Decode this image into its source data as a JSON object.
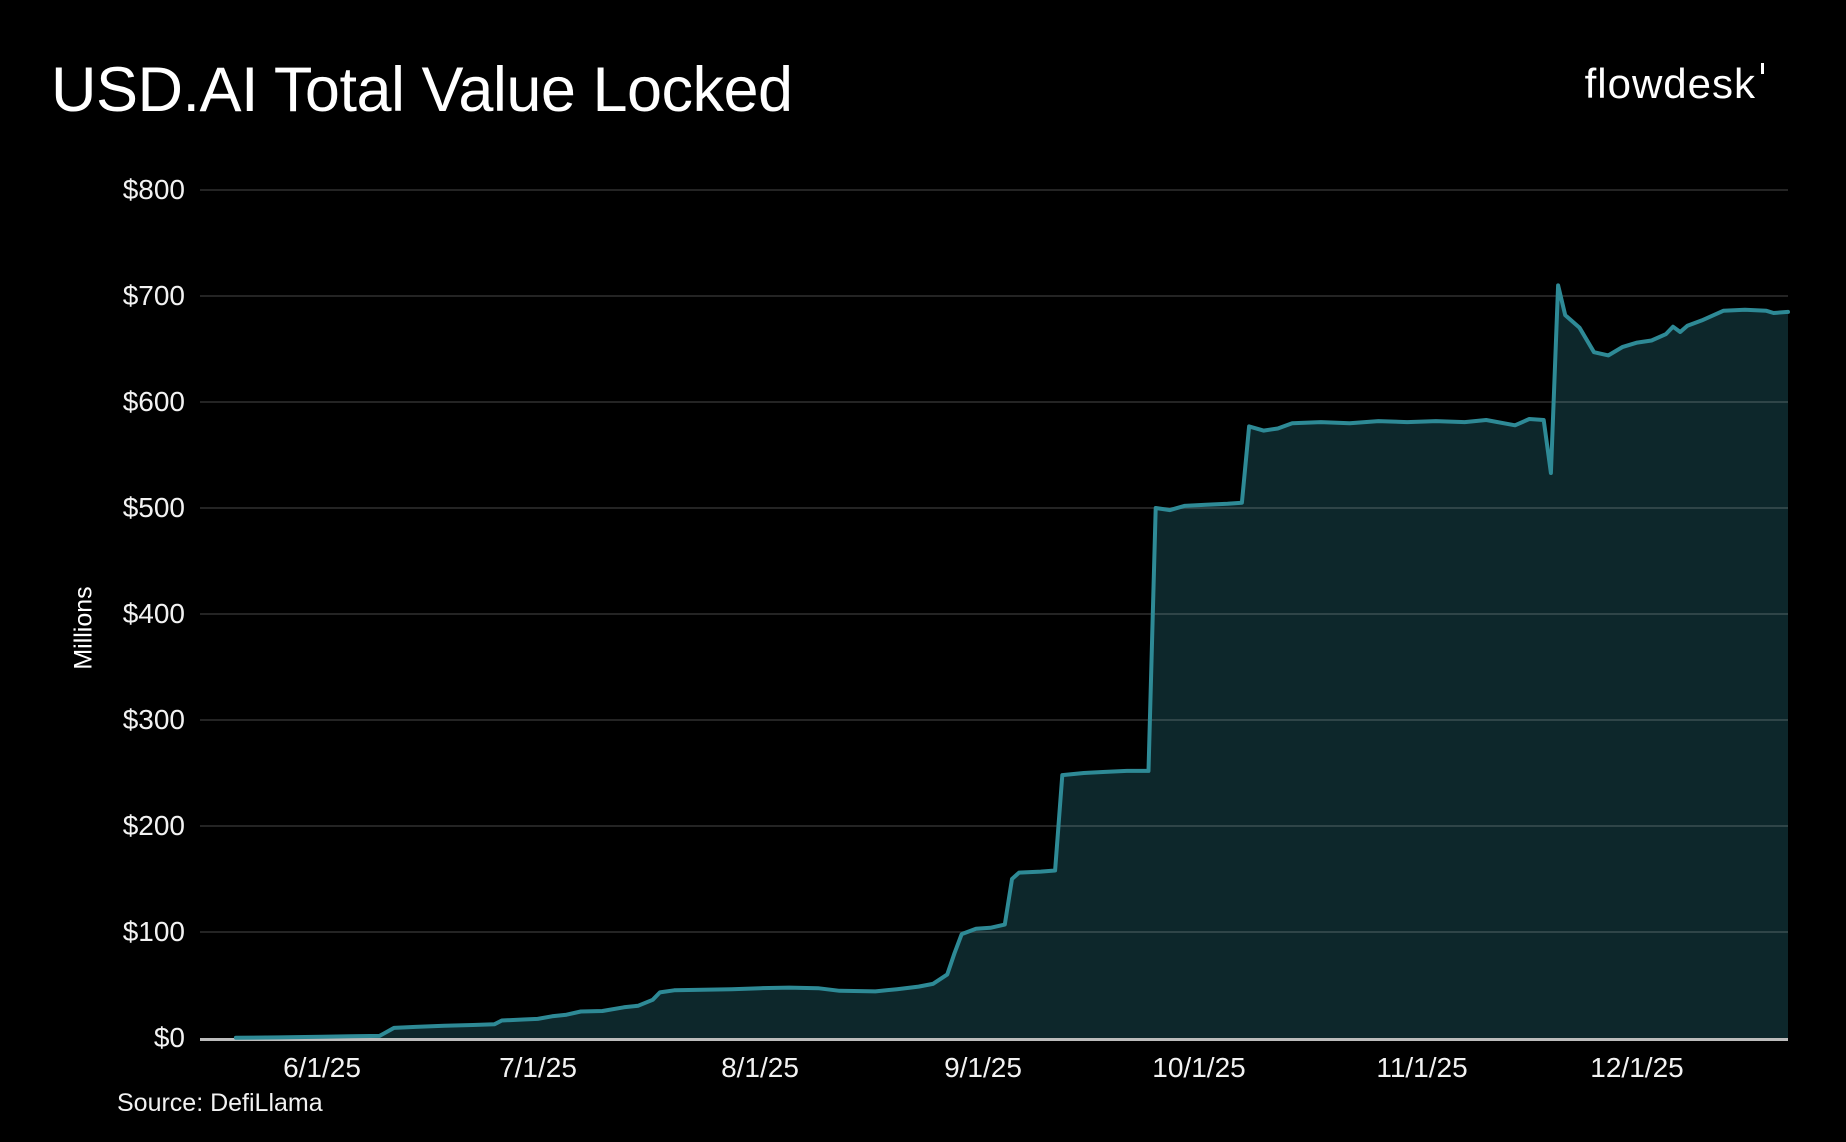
{
  "header": {
    "title": "USD.AI Total Value Locked",
    "brand": "flowdesk"
  },
  "footer": {
    "source": "Source: DefiLlama"
  },
  "chart_data": {
    "type": "area",
    "title": "USD.AI Total Value Locked",
    "xlabel": "",
    "ylabel": "Millions",
    "unit": "USD millions",
    "ylim": [
      0,
      800
    ],
    "grid": "horizontal",
    "legend": "none",
    "background": "#000000",
    "colors": {
      "line": "#2E8A96",
      "fill": "#0D272B",
      "grid": "rgba(255,255,255,0.14)",
      "axis": "#BCBCBC",
      "text": "#F2F2F2"
    },
    "x_range": [
      "5/15/25",
      "12/22/25"
    ],
    "x_ticks": [
      "6/1/25",
      "7/1/25",
      "8/1/25",
      "9/1/25",
      "10/1/25",
      "11/1/25",
      "12/1/25"
    ],
    "y_ticks": [
      {
        "value": 0,
        "label": "$0"
      },
      {
        "value": 100,
        "label": "$100"
      },
      {
        "value": 200,
        "label": "$200"
      },
      {
        "value": 300,
        "label": "$300"
      },
      {
        "value": 400,
        "label": "$400"
      },
      {
        "value": 500,
        "label": "$500"
      },
      {
        "value": 600,
        "label": "$600"
      },
      {
        "value": 700,
        "label": "$700"
      },
      {
        "value": 800,
        "label": "$800"
      }
    ],
    "series": [
      {
        "name": "USD.AI TVL",
        "points": [
          [
            "5/20/25",
            0.3
          ],
          [
            "5/26/25",
            0.6
          ],
          [
            "6/1/25",
            1.2
          ],
          [
            "6/5/25",
            1.6
          ],
          [
            "6/9/25",
            2
          ],
          [
            "6/11/25",
            9.5
          ],
          [
            "6/14/25",
            10.5
          ],
          [
            "6/18/25",
            11.5
          ],
          [
            "6/22/25",
            12.3
          ],
          [
            "6/25/25",
            13
          ],
          [
            "6/26/25",
            16.5
          ],
          [
            "6/29/25",
            17.5
          ],
          [
            "7/1/25",
            18
          ],
          [
            "7/3/25",
            20.5
          ],
          [
            "7/5/25",
            22
          ],
          [
            "7/7/25",
            25
          ],
          [
            "7/10/25",
            25.5
          ],
          [
            "7/13/25",
            29
          ],
          [
            "7/15/25",
            30.5
          ],
          [
            "7/17/25",
            36
          ],
          [
            "7/18/25",
            43
          ],
          [
            "7/20/25",
            45
          ],
          [
            "7/24/25",
            45.5
          ],
          [
            "7/28/25",
            46
          ],
          [
            "8/1/25",
            47
          ],
          [
            "8/5/25",
            47.5
          ],
          [
            "8/9/25",
            47
          ],
          [
            "8/12/25",
            44.5
          ],
          [
            "8/17/25",
            44
          ],
          [
            "8/20/25",
            46
          ],
          [
            "8/23/25",
            48.5
          ],
          [
            "8/25/25",
            51
          ],
          [
            "8/27/25",
            60
          ],
          [
            "8/28/25",
            80
          ],
          [
            "8/29/25",
            98
          ],
          [
            "8/31/25",
            103
          ],
          [
            "9/2/25",
            104
          ],
          [
            "9/4/25",
            107
          ],
          [
            "9/5/25",
            150
          ],
          [
            "9/6/25",
            156
          ],
          [
            "9/9/25",
            157
          ],
          [
            "9/11/25",
            158
          ],
          [
            "9/12/25",
            248
          ],
          [
            "9/15/25",
            250
          ],
          [
            "9/18/25",
            251
          ],
          [
            "9/21/25",
            252
          ],
          [
            "9/24/25",
            252
          ],
          [
            "9/25/25",
            500
          ],
          [
            "9/27/25",
            498
          ],
          [
            "9/29/25",
            502
          ],
          [
            "10/2/25",
            503
          ],
          [
            "10/5/25",
            504
          ],
          [
            "10/7/25",
            505
          ],
          [
            "10/8/25",
            577
          ],
          [
            "10/10/25",
            573
          ],
          [
            "10/12/25",
            575
          ],
          [
            "10/14/25",
            580
          ],
          [
            "10/18/25",
            581
          ],
          [
            "10/22/25",
            580
          ],
          [
            "10/26/25",
            582
          ],
          [
            "10/30/25",
            581
          ],
          [
            "11/3/25",
            582
          ],
          [
            "11/7/25",
            581
          ],
          [
            "11/10/25",
            583
          ],
          [
            "11/14/25",
            578
          ],
          [
            "11/16/25",
            584
          ],
          [
            "11/18/25",
            583
          ],
          [
            "11/19/25",
            533
          ],
          [
            "11/20/25",
            710
          ],
          [
            "11/21/25",
            682
          ],
          [
            "11/23/25",
            670
          ],
          [
            "11/25/25",
            647
          ],
          [
            "11/27/25",
            644
          ],
          [
            "11/29/25",
            652
          ],
          [
            "12/1/25",
            656
          ],
          [
            "12/3/25",
            658
          ],
          [
            "12/5/25",
            664
          ],
          [
            "12/6/25",
            671
          ],
          [
            "12/7/25",
            666
          ],
          [
            "12/8/25",
            672
          ],
          [
            "12/10/25",
            677
          ],
          [
            "12/13/25",
            686
          ],
          [
            "12/16/25",
            687
          ],
          [
            "12/19/25",
            686
          ],
          [
            "12/20/25",
            684
          ],
          [
            "12/22/25",
            685
          ]
        ]
      }
    ]
  }
}
